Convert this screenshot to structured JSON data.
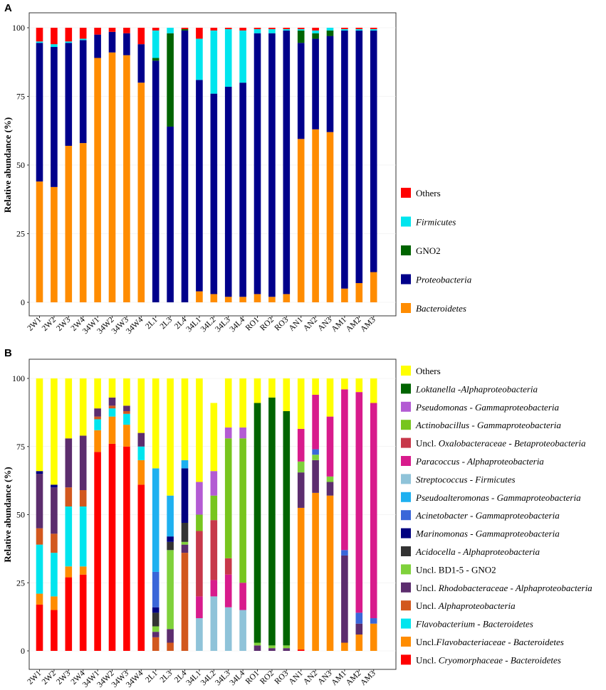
{
  "figure": {
    "panel_labels": [
      "A",
      "B"
    ]
  },
  "chart_data": [
    {
      "type": "bar",
      "stacked": true,
      "panel": "A",
      "title": "",
      "xlabel": "",
      "ylabel": "Relative abundance (%)",
      "ylim": [
        0,
        100
      ],
      "yticks": [
        "0",
        "25",
        "50",
        "75",
        "100"
      ],
      "categories": [
        "2W1",
        "2W2",
        "2W3",
        "2W4",
        "34W1",
        "34W2",
        "34W3",
        "34W4",
        "2L1",
        "2L3",
        "2L4",
        "34L1",
        "34L2",
        "34L3",
        "34L4",
        "RO1",
        "RO2",
        "RO3",
        "AN1",
        "AN2",
        "AN3",
        "AM1",
        "AM2",
        "AM3"
      ],
      "series": [
        {
          "name": "Bacteroidetes",
          "color": "#FF8C00",
          "italic": true,
          "values": [
            44,
            42,
            57,
            58,
            89,
            91,
            90,
            80,
            0,
            0,
            0,
            4,
            3,
            2,
            2,
            3,
            2,
            3,
            59.5,
            63,
            62,
            5,
            7,
            11
          ]
        },
        {
          "name": "Proteobacteria",
          "color": "#00008B",
          "italic": true,
          "values": [
            50.5,
            51,
            37.5,
            37.5,
            8.5,
            7.5,
            8,
            14,
            88,
            64,
            99,
            77,
            73,
            76.5,
            78,
            95,
            96,
            96,
            35,
            33,
            35,
            94,
            92,
            88
          ]
        },
        {
          "name": "GNO2",
          "color": "#006400",
          "italic": false,
          "values": [
            0,
            0,
            0,
            0,
            0,
            0,
            0,
            0,
            1,
            34,
            0.5,
            0,
            0,
            0,
            0,
            0,
            0,
            0,
            4.5,
            2,
            2,
            0,
            0,
            0
          ]
        },
        {
          "name": "Firmicutes",
          "color": "#00E5EE",
          "italic": true,
          "values": [
            0.5,
            1,
            0.5,
            0.5,
            0,
            0,
            0,
            0,
            10,
            2,
            0,
            15,
            23,
            21,
            19,
            1.5,
            1.5,
            0.5,
            0.5,
            1,
            1,
            0.5,
            0.5,
            0.5
          ]
        },
        {
          "name": "Others",
          "color": "#FF0000",
          "italic": false,
          "values": [
            5,
            6,
            5,
            4,
            2.5,
            1.5,
            2,
            6,
            1,
            0,
            0.5,
            4,
            1,
            0.5,
            1,
            0.5,
            0.5,
            0.5,
            0.5,
            1,
            0,
            0.5,
            0.5,
            0.5
          ]
        }
      ],
      "legend_order": [
        "Others",
        "Firmicutes",
        "GNO2",
        "Proteobacteria",
        "Bacteroidetes"
      ]
    },
    {
      "type": "bar",
      "stacked": true,
      "panel": "B",
      "title": "",
      "xlabel": "",
      "ylabel": "Relative abundance (%)",
      "ylim": [
        0,
        100
      ],
      "yticks": [
        "0",
        "25",
        "50",
        "75",
        "100"
      ],
      "categories": [
        "2W1",
        "2W2",
        "2W3",
        "2W4",
        "34W1",
        "34W2",
        "34W3",
        "34W4",
        "2L1",
        "2L3",
        "2L4",
        "34L1",
        "34L2",
        "34L3",
        "34L4",
        "RO1",
        "RO2",
        "RO3",
        "AN1",
        "AN2",
        "AN3",
        "AM1",
        "AM2",
        "AM3"
      ],
      "series": [
        {
          "name": "Uncl. Cryomorphaceae - Bacteroidetes",
          "genus": "Cryomorphaceae",
          "prefix": "Uncl. ",
          "suffix": " - Bacteroidetes",
          "color": "#FF0000",
          "values": [
            17,
            15,
            27,
            28,
            73,
            76,
            75,
            61,
            0,
            0,
            0,
            0,
            0,
            0,
            0,
            0,
            0,
            0,
            0.5,
            0,
            0,
            0,
            0,
            0
          ]
        },
        {
          "name": "Uncl.Flavobacteriaceae - Bacteroidetes",
          "genus": "Flavobacteriaceae",
          "prefix": "Uncl.",
          "suffix": " - Bacteroidetes",
          "color": "#FF8C00",
          "values": [
            4,
            5,
            4,
            3,
            8,
            10,
            8,
            9,
            0,
            0,
            0,
            0,
            0,
            0,
            0,
            0,
            0,
            0,
            52,
            58,
            57,
            3,
            6,
            10
          ]
        },
        {
          "name": "Flavobacterium - Bacteroidetes",
          "genus": "Flavobacterium",
          "prefix": "",
          "suffix": " - Bacteroidetes",
          "color": "#00E5EE",
          "values": [
            18,
            16,
            22,
            22,
            4,
            3,
            4,
            5,
            0,
            0,
            0,
            0,
            0,
            0,
            0,
            0,
            0,
            0,
            0,
            0,
            0,
            0,
            0,
            0
          ]
        },
        {
          "name": "Uncl. Alphaproteobacteria",
          "genus": "Alphaproteobacteria",
          "prefix": "Uncl. ",
          "suffix": "",
          "color": "#D2581E",
          "values": [
            6,
            7,
            7,
            6,
            1,
            1,
            1,
            0,
            5,
            3,
            36,
            0,
            0,
            0,
            0,
            0,
            0,
            0,
            0,
            0,
            0,
            0,
            0,
            0
          ]
        },
        {
          "name": "Uncl. Rhodobacteraceae - Alphaproteobacteria",
          "genus": "Rhodobacteraceae",
          "prefix": "Uncl. ",
          "suffix": " - Alphaproteobacteria",
          "color": "#5C2D6E",
          "values": [
            20,
            17,
            18,
            20,
            3,
            3,
            2,
            5,
            2,
            5,
            3,
            0,
            0,
            0,
            0,
            2,
            1,
            1,
            13,
            12,
            5,
            32,
            4,
            0
          ]
        },
        {
          "name": "Uncl. BD1-5 - GNO2",
          "genus": "",
          "prefix": "Uncl. BD1-5 - GNO2",
          "suffix": "",
          "color": "#7FD13B",
          "values": [
            0,
            0,
            0,
            0,
            0,
            0,
            0,
            0,
            2,
            29,
            1,
            0,
            0,
            0,
            0,
            1,
            1,
            1,
            4,
            2,
            2,
            0,
            0,
            0
          ]
        },
        {
          "name": "Acidocella - Alphaproteobacteria",
          "genus": "Acidocella",
          "prefix": "",
          "suffix": " - Alphaproteobacteria",
          "color": "#333333",
          "values": [
            0,
            0,
            0,
            0,
            0,
            0,
            0,
            0,
            5,
            3,
            7,
            0,
            0,
            0,
            0,
            0,
            0,
            0,
            0,
            0,
            0,
            0,
            0,
            0
          ]
        },
        {
          "name": "Marinomonas - Gammaproteobacteria",
          "genus": "Marinomonas",
          "prefix": "",
          "suffix": " - Gammaproteobacteria",
          "color": "#000080",
          "values": [
            1,
            1,
            0,
            0,
            0,
            0,
            0,
            0,
            2,
            2,
            20,
            0,
            0,
            0,
            0,
            0,
            0,
            0,
            0,
            0,
            0,
            0,
            0,
            0
          ]
        },
        {
          "name": "Acinetobacter - Gammaproteobacteria",
          "genus": "Acinetobacter",
          "prefix": "",
          "suffix": " - Gammaproteobacteria",
          "color": "#3A66D9",
          "values": [
            0,
            0,
            0,
            0,
            0,
            0,
            0,
            0,
            13,
            0,
            0,
            0,
            0,
            0,
            0,
            0,
            0,
            0,
            0,
            2,
            0,
            2,
            4,
            2
          ]
        },
        {
          "name": "Pseudoalteromonas - Gammaproteobacteria",
          "genus": "Pseudoalteromonas",
          "prefix": "",
          "suffix": " - Gammaproteobacteria",
          "color": "#1EB0F0",
          "values": [
            0,
            0,
            0,
            0,
            0,
            0,
            0,
            0,
            38,
            15,
            3,
            0,
            0,
            0,
            0,
            0,
            0,
            0,
            0,
            0,
            0,
            0,
            0,
            0
          ]
        },
        {
          "name": "Streptococcus - Firmicutes",
          "genus": "Streptococcus",
          "prefix": "",
          "suffix": " - Firmicutes",
          "color": "#8FC3D9",
          "values": [
            0,
            0,
            0,
            0,
            0,
            0,
            0,
            0,
            0,
            0,
            0,
            12,
            20,
            16,
            15,
            0,
            0,
            0,
            0,
            0,
            0,
            0,
            0,
            0
          ]
        },
        {
          "name": "Paracoccus - Alphaproteobacteria",
          "genus": "Paracoccus",
          "prefix": "",
          "suffix": " - Alphaproteobacteria",
          "color": "#D81B8C",
          "values": [
            0,
            0,
            0,
            0,
            0,
            0,
            0,
            0,
            0,
            0,
            0,
            8,
            6,
            12,
            10,
            0,
            0,
            0,
            12,
            20,
            22,
            59,
            81,
            79
          ]
        },
        {
          "name": "Uncl. Oxalobacteraceae - Betaproteobacteria",
          "genus": "Oxalobacteraceae",
          "prefix": "Uncl. ",
          "suffix": " - Betaproteobacteria",
          "color": "#C7384A",
          "values": [
            0,
            0,
            0,
            0,
            0,
            0,
            0,
            0,
            0,
            0,
            0,
            24,
            22,
            6,
            0,
            0,
            0,
            0,
            0,
            0,
            0,
            0,
            0,
            0
          ]
        },
        {
          "name": "Actinobacillus - Gammaproteobacteria",
          "genus": "Actinobacillus",
          "prefix": "",
          "suffix": " - Gammaproteobacteria",
          "color": "#77C51E",
          "values": [
            0,
            0,
            0,
            0,
            0,
            0,
            0,
            0,
            0,
            0,
            0,
            6,
            9,
            44,
            53,
            0,
            0,
            0,
            0,
            0,
            0,
            0,
            0,
            0
          ]
        },
        {
          "name": "Pseudomonas - Gammaproteobacteria",
          "genus": "Pseudomonas",
          "prefix": "",
          "suffix": " - Gammaproteobacteria",
          "color": "#B35BD3",
          "values": [
            0,
            0,
            0,
            0,
            0,
            0,
            0,
            0,
            0,
            0,
            0,
            12,
            9,
            4,
            4,
            0,
            0,
            0,
            0,
            0,
            0,
            0,
            0,
            0
          ]
        },
        {
          "name": "Loktanella -Alphaproteobacteria",
          "genus": "Loktanella",
          "prefix": "",
          "suffix": " -Alphaproteobacteria",
          "color": "#006400",
          "values": [
            0,
            0,
            0,
            0,
            0,
            0,
            0,
            0,
            0,
            0,
            0,
            0,
            0,
            0,
            0,
            88,
            91,
            86,
            0,
            0,
            0,
            0,
            0,
            0
          ]
        },
        {
          "name": "Others",
          "genus": "",
          "prefix": "Others",
          "suffix": "",
          "color": "#FFFF00",
          "values": [
            34,
            39,
            22,
            21,
            11,
            7,
            10,
            20,
            33,
            43,
            30,
            38,
            25,
            18,
            18,
            9,
            7,
            12,
            18.5,
            6,
            14,
            4,
            5,
            9
          ]
        }
      ],
      "legend_order": [
        "Others",
        "Loktanella -Alphaproteobacteria",
        "Pseudomonas - Gammaproteobacteria",
        "Actinobacillus - Gammaproteobacteria",
        "Uncl. Oxalobacteraceae - Betaproteobacteria",
        "Paracoccus - Alphaproteobacteria",
        "Streptococcus - Firmicutes",
        "Pseudoalteromonas - Gammaproteobacteria",
        "Acinetobacter - Gammaproteobacteria",
        "Marinomonas - Gammaproteobacteria",
        "Acidocella - Alphaproteobacteria",
        "Uncl. BD1-5 - GNO2",
        "Uncl. Rhodobacteraceae - Alphaproteobacteria",
        "Uncl. Alphaproteobacteria",
        "Flavobacterium - Bacteroidetes",
        "Uncl.Flavobacteriaceae - Bacteroidetes",
        "Uncl. Cryomorphaceae - Bacteroidetes"
      ]
    }
  ]
}
